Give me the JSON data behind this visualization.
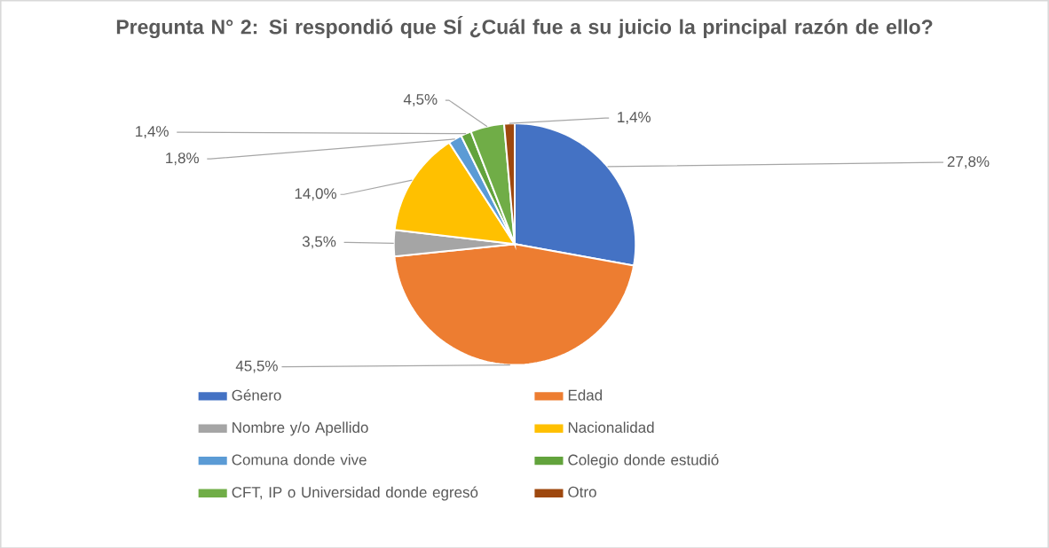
{
  "chart_data": {
    "type": "pie",
    "title": "Pregunta N° 2: Si respondió que SÍ ¿Cuál fue a su juicio la principal razón de ello?",
    "categories": [
      "Género",
      "Edad",
      "Nombre y/o Apellido",
      "Nacionalidad",
      "Comuna donde vive",
      "Colegio donde estudió",
      "CFT, IP o Universidad donde egresó",
      "Otro"
    ],
    "values": [
      27.8,
      45.5,
      3.5,
      14.0,
      1.8,
      1.4,
      4.5,
      1.4
    ],
    "value_labels": [
      "27,8%",
      "45,5%",
      "3,5%",
      "14,0%",
      "1,8%",
      "1,4%",
      "4,5%",
      "1,4%"
    ],
    "colors": [
      "#4472c4",
      "#ed7d31",
      "#a5a5a5",
      "#ffc000",
      "#5b9bd5",
      "#62a33c",
      "#70ad47",
      "#9e480e"
    ],
    "legend": "bottom"
  }
}
